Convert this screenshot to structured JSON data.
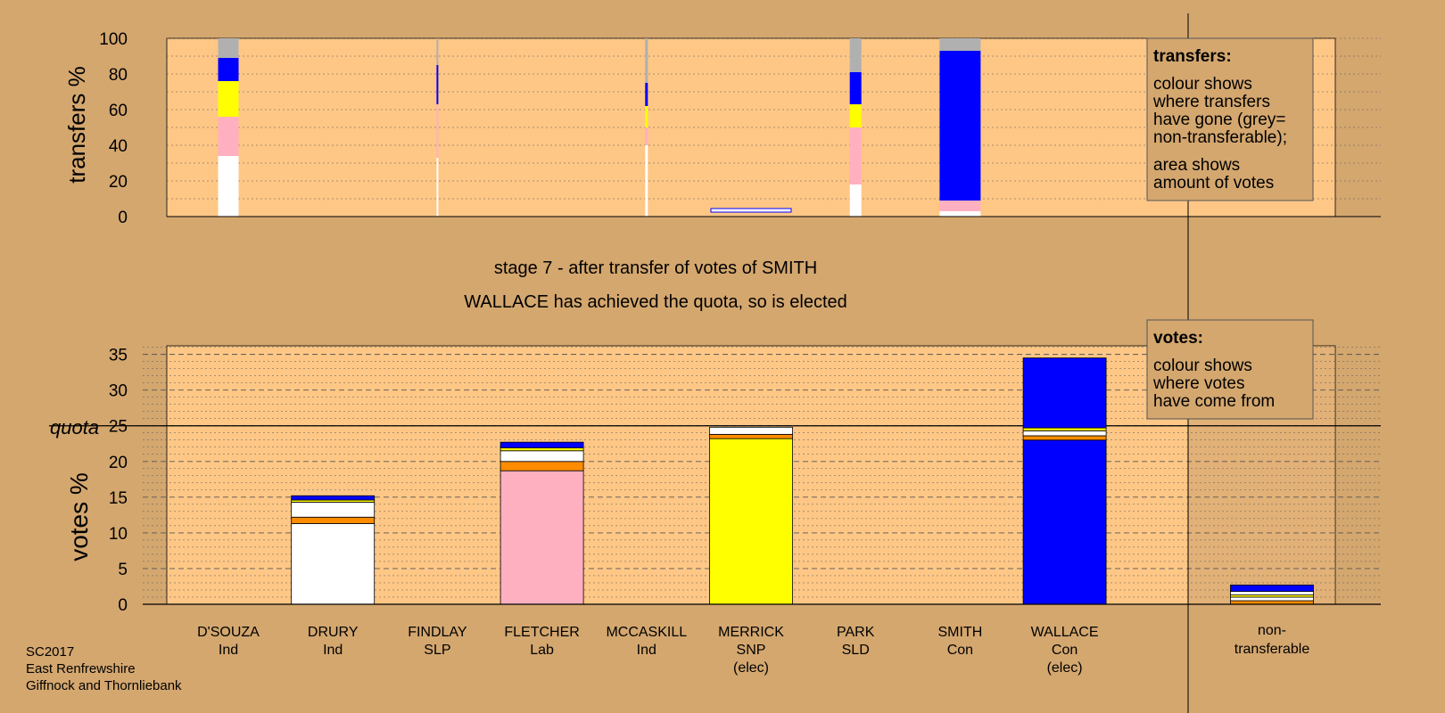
{
  "stage_text": "stage 7 - after transfer of votes of SMITH",
  "elected_text": "WALLACE has achieved the quota, so is elected",
  "quota_label": "quota",
  "top_legend": {
    "title": "transfers:",
    "lines1": [
      "colour shows",
      "where transfers",
      "have gone (grey=",
      "non-transferable);"
    ],
    "lines2": [
      "area shows",
      "amount of votes"
    ]
  },
  "bottom_legend": {
    "title": "votes:",
    "lines": [
      "colour shows",
      "where votes",
      "have come from"
    ]
  },
  "footer": [
    "SC2017",
    "East Renfrewshire",
    "Giffnock and Thornliebank"
  ],
  "colors": {
    "background": "#d4a76f",
    "plot": "#fec786",
    "Ind": "#ffffff",
    "SLP": "#ffb0c0",
    "Lab": "#ffb0c0",
    "SNP": "#ffff00",
    "SLD": "#ff8c00",
    "Con": "#0000ff",
    "nontransferable": "#b0b0b0"
  },
  "chart_data": [
    {
      "type": "bar",
      "stacked": true,
      "name": "transfers",
      "ylabel": "transfers %",
      "ylim": [
        0,
        100
      ],
      "yticks": [
        0,
        20,
        40,
        60,
        80,
        100
      ],
      "categories": [
        "D'SOUZA",
        "DRURY",
        "FINDLAY",
        "FLETCHER",
        "MCCASKILL",
        "MERRICK",
        "PARK",
        "SMITH",
        "WALLACE"
      ],
      "bars": [
        {
          "candidate": "D'SOUZA",
          "segments": [
            {
              "color": "#ffffff",
              "value": 34
            },
            {
              "color": "#ffb0c0",
              "value": 22
            },
            {
              "color": "#ffff00",
              "value": 20
            },
            {
              "color": "#0000ff",
              "value": 13
            },
            {
              "color": "#b0b0b0",
              "value": 11
            }
          ]
        },
        {
          "candidate": "FINDLAY",
          "segments": [
            {
              "color": "#ffffff",
              "value": 33
            },
            {
              "color": "#ffb0c0",
              "value": 30
            },
            {
              "color": "#0000ff",
              "value": 22
            },
            {
              "color": "#b0b0b0",
              "value": 15
            }
          ]
        },
        {
          "candidate": "MCCASKILL",
          "segments": [
            {
              "color": "#ffffff",
              "value": 40
            },
            {
              "color": "#ffb0c0",
              "value": 10
            },
            {
              "color": "#ffff00",
              "value": 12
            },
            {
              "color": "#0000ff",
              "value": 13
            },
            {
              "color": "#b0b0b0",
              "value": 25
            }
          ]
        },
        {
          "candidate": "PARK",
          "segments": [
            {
              "color": "#ffffff",
              "value": 18
            },
            {
              "color": "#ffb0c0",
              "value": 32
            },
            {
              "color": "#ffff00",
              "value": 13
            },
            {
              "color": "#0000ff",
              "value": 18
            },
            {
              "color": "#b0b0b0",
              "value": 19
            }
          ]
        },
        {
          "candidate": "SMITH",
          "segments": [
            {
              "color": "#ffffff",
              "value": 3
            },
            {
              "color": "#ffb0c0",
              "value": 6
            },
            {
              "color": "#0000ff",
              "value": 84
            },
            {
              "color": "#b0b0b0",
              "value": 7
            }
          ]
        }
      ]
    },
    {
      "type": "bar",
      "stacked": true,
      "name": "votes",
      "ylabel": "votes %",
      "ylim": [
        0,
        35
      ],
      "yticks": [
        0,
        5,
        10,
        15,
        20,
        25,
        30,
        35
      ],
      "quota": 25,
      "candidates": [
        {
          "name": "D'SOUZA",
          "party": "Ind",
          "elected": false,
          "segments": []
        },
        {
          "name": "DRURY",
          "party": "Ind",
          "elected": false,
          "segments": [
            {
              "color": "#ffffff",
              "value": 11.3
            },
            {
              "color": "#ff8c00",
              "value": 0.9
            },
            {
              "color": "#ffffff",
              "value": 2.1
            },
            {
              "color": "#ffff00",
              "value": 0.3
            },
            {
              "color": "#0000ff",
              "value": 0.6
            }
          ]
        },
        {
          "name": "FINDLAY",
          "party": "SLP",
          "elected": false,
          "segments": []
        },
        {
          "name": "FLETCHER",
          "party": "Lab",
          "elected": false,
          "segments": [
            {
              "color": "#ffb0c0",
              "value": 18.7
            },
            {
              "color": "#ff8c00",
              "value": 1.3
            },
            {
              "color": "#ffffff",
              "value": 1.5
            },
            {
              "color": "#ffff00",
              "value": 0.4
            },
            {
              "color": "#0000ff",
              "value": 0.8
            }
          ]
        },
        {
          "name": "MCCASKILL",
          "party": "Ind",
          "elected": false,
          "segments": []
        },
        {
          "name": "MERRICK",
          "party": "SNP",
          "elected": true,
          "segments": [
            {
              "color": "#ffff00",
              "value": 23.2
            },
            {
              "color": "#ff8c00",
              "value": 0.6
            },
            {
              "color": "#ffffff",
              "value": 1.0
            }
          ]
        },
        {
          "name": "PARK",
          "party": "SLD",
          "elected": false,
          "segments": []
        },
        {
          "name": "SMITH",
          "party": "Con",
          "elected": false,
          "segments": []
        },
        {
          "name": "WALLACE",
          "party": "Con",
          "elected": true,
          "segments": [
            {
              "color": "#0000ff",
              "value": 23.0
            },
            {
              "color": "#ff8c00",
              "value": 0.6
            },
            {
              "color": "#ffffff",
              "value": 0.7
            },
            {
              "color": "#ffff00",
              "value": 0.4
            },
            {
              "color": "#0000ff",
              "value": 9.8
            }
          ]
        }
      ],
      "nontransferable": {
        "label": [
          "non-",
          "transferable"
        ],
        "segments": [
          {
            "color": "#ff8c00",
            "value": 0.5
          },
          {
            "color": "#ffffff",
            "value": 0.5
          },
          {
            "color": "#ffff00",
            "value": 0.3
          },
          {
            "color": "#ffffff",
            "value": 0.5
          },
          {
            "color": "#0000ff",
            "value": 0.9
          }
        ]
      }
    }
  ]
}
